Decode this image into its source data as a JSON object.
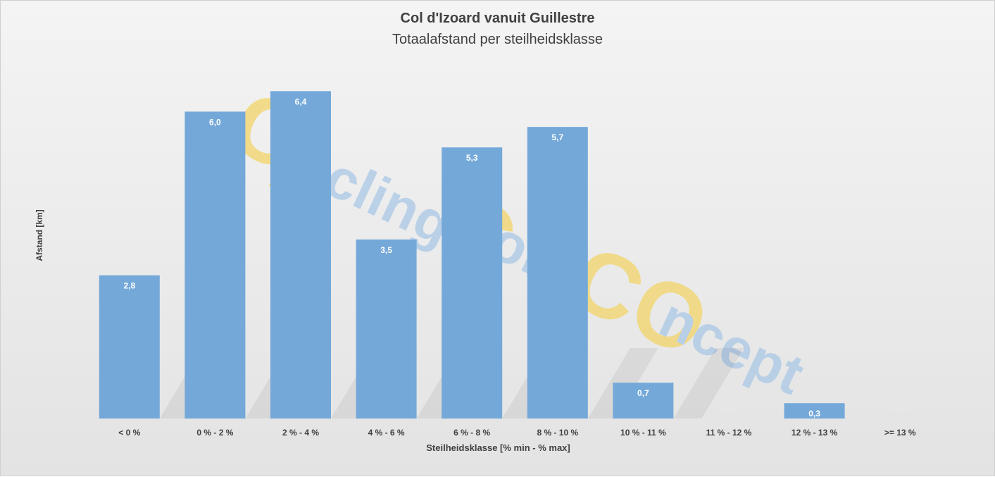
{
  "chart_data": {
    "type": "bar",
    "title": "Col d'Izoard vanuit Guillestre",
    "subtitle": "Totaalafstand per steilheidsklasse",
    "xlabel": "Steilheidsklasse [% min - % max]",
    "ylabel": "Afstand [km]",
    "categories": [
      "< 0 %",
      "0 % - 2 %",
      "2 % - 4 %",
      "4 % - 6 %",
      "6 % - 8 %",
      "8 % - 10 %",
      "10 % - 11 %",
      "11 % - 12 %",
      "12 % - 13 %",
      ">= 13 %"
    ],
    "values": [
      2.8,
      6.0,
      6.4,
      3.5,
      5.3,
      5.7,
      0.7,
      0.0,
      0.3,
      0.0
    ],
    "data_labels": [
      "2,8",
      "6,0",
      "6,4",
      "3,5",
      "5,3",
      "5,7",
      "0,7",
      "0,0",
      "0,3",
      "0,0"
    ],
    "ylim": [
      0,
      7
    ],
    "grid": false,
    "legend": "none",
    "colors": {
      "bar": "#74a8d9",
      "bar_label": "#ffffff",
      "zero_label": "#e8e8e8",
      "tick_text": "#404040",
      "watermark_yellow": "#f2d569",
      "watermark_blue": "#a9c7e6"
    }
  },
  "watermark": {
    "text": "CyclingColsConcept",
    "parts": [
      "C",
      "y",
      "cling",
      "C",
      "ols",
      "CO",
      "ncept"
    ]
  }
}
